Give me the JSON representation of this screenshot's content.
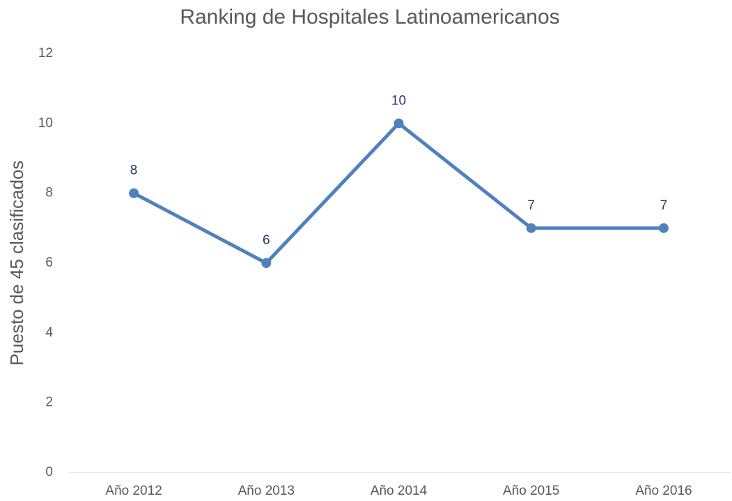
{
  "chart_data": {
    "type": "line",
    "title": "Ranking de Hospitales Latinoamericanos",
    "y_label": "Puesto de 45 clasificados",
    "categories": [
      "Año 2012",
      "Año 2013",
      "Año 2014",
      "Año 2015",
      "Año 2016"
    ],
    "values": [
      8,
      6,
      10,
      7,
      7
    ],
    "color": "#4f81bd",
    "ylim": [
      0,
      12
    ],
    "yticks": [
      0,
      2,
      4,
      6,
      8,
      10,
      12
    ],
    "grid": false,
    "data_labels": true
  }
}
